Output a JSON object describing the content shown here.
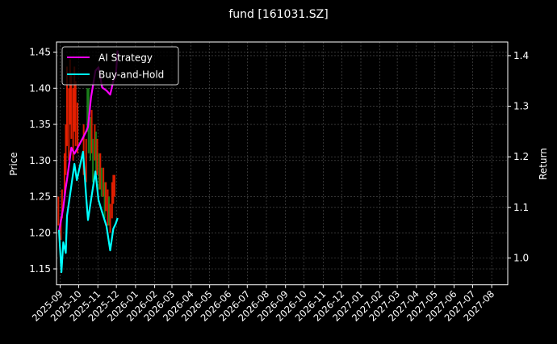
{
  "chart_data": {
    "type": "line",
    "title": "fund [161031.SZ]",
    "ylabel_left": "Price",
    "ylabel_right": "Return",
    "xlim": [
      "2025-08-26",
      "2027-08-27"
    ],
    "ylim_left": [
      1.128,
      1.464
    ],
    "ylim_right": [
      0.947,
      1.427
    ],
    "grid": true,
    "legend_placement": "top-left",
    "x_tick_labels": [
      "2025-09",
      "2025-10",
      "2025-11",
      "2025-12",
      "2026-01",
      "2026-02",
      "2026-03",
      "2026-04",
      "2026-05",
      "2026-06",
      "2026-07",
      "2026-08",
      "2026-09",
      "2026-10",
      "2026-11",
      "2026-12",
      "2027-01",
      "2027-02",
      "2027-03",
      "2027-04",
      "2027-05",
      "2027-06",
      "2027-07",
      "2027-08"
    ],
    "y_left_tick_labels": [
      "1.15",
      "1.20",
      "1.25",
      "1.30",
      "1.35",
      "1.40",
      "1.45"
    ],
    "y_right_tick_labels": [
      "1.0",
      "1.1",
      "1.2",
      "1.3",
      "1.4"
    ],
    "colors": {
      "background": "#000000",
      "up": "#ff2200",
      "down": "#1f8f1f",
      "ai_strategy": "#ff00ff",
      "buy_and_hold": "#00ffff",
      "grid": "#555555"
    },
    "price_candles": [
      {
        "date": "2025-08-29",
        "open": 1.21,
        "close": 1.25
      },
      {
        "date": "2025-09-02",
        "open": 1.19,
        "close": 1.22
      },
      {
        "date": "2025-09-04",
        "open": 1.22,
        "close": 1.26
      },
      {
        "date": "2025-09-08",
        "open": 1.25,
        "close": 1.31
      },
      {
        "date": "2025-09-10",
        "open": 1.28,
        "close": 1.35
      },
      {
        "date": "2025-09-12",
        "open": 1.32,
        "close": 1.43
      },
      {
        "date": "2025-09-15",
        "open": 1.3,
        "close": 1.4
      },
      {
        "date": "2025-09-17",
        "open": 1.35,
        "close": 1.44
      },
      {
        "date": "2025-09-19",
        "open": 1.33,
        "close": 1.42
      },
      {
        "date": "2025-09-22",
        "open": 1.3,
        "close": 1.4
      },
      {
        "date": "2025-09-24",
        "open": 1.34,
        "close": 1.43
      },
      {
        "date": "2025-09-26",
        "open": 1.32,
        "close": 1.41
      },
      {
        "date": "2025-09-29",
        "open": 1.31,
        "close": 1.38
      },
      {
        "date": "2025-10-09",
        "open": 1.28,
        "close": 1.35
      },
      {
        "date": "2025-10-13",
        "open": 1.27,
        "close": 1.33
      },
      {
        "date": "2025-10-15",
        "open": 1.4,
        "close": 1.34
      },
      {
        "date": "2025-10-17",
        "open": 1.4,
        "close": 1.31
      },
      {
        "date": "2025-10-20",
        "open": 1.36,
        "close": 1.3
      },
      {
        "date": "2025-10-22",
        "open": 1.31,
        "close": 1.37
      },
      {
        "date": "2025-10-24",
        "open": 1.33,
        "close": 1.27
      },
      {
        "date": "2025-10-27",
        "open": 1.3,
        "close": 1.35
      },
      {
        "date": "2025-10-29",
        "open": 1.34,
        "close": 1.28
      },
      {
        "date": "2025-10-31",
        "open": 1.28,
        "close": 1.33
      },
      {
        "date": "2025-11-03",
        "open": 1.31,
        "close": 1.26
      },
      {
        "date": "2025-11-05",
        "open": 1.26,
        "close": 1.31
      },
      {
        "date": "2025-11-07",
        "open": 1.29,
        "close": 1.25
      },
      {
        "date": "2025-11-10",
        "open": 1.25,
        "close": 1.29
      },
      {
        "date": "2025-11-12",
        "open": 1.27,
        "close": 1.22
      },
      {
        "date": "2025-11-14",
        "open": 1.23,
        "close": 1.27
      },
      {
        "date": "2025-11-17",
        "open": 1.21,
        "close": 1.26
      },
      {
        "date": "2025-11-19",
        "open": 1.25,
        "close": 1.21
      },
      {
        "date": "2025-11-21",
        "open": 1.2,
        "close": 1.24
      },
      {
        "date": "2025-11-24",
        "open": 1.22,
        "close": 1.27
      },
      {
        "date": "2025-11-26",
        "open": 1.24,
        "close": 1.28
      },
      {
        "date": "2025-11-28",
        "open": 1.25,
        "close": 1.28
      }
    ],
    "x": [
      "2025-08-30",
      "2025-09-03",
      "2025-09-06",
      "2025-09-10",
      "2025-09-12",
      "2025-09-19",
      "2025-09-24",
      "2025-09-28",
      "2025-10-08",
      "2025-10-13",
      "2025-10-16",
      "2025-10-21",
      "2025-10-28",
      "2025-11-02",
      "2025-11-08",
      "2025-11-15",
      "2025-11-21",
      "2025-11-26",
      "2025-11-30",
      "2025-12-03"
    ],
    "series": [
      {
        "name": "AI Strategy",
        "axis": "right",
        "values": [
          1.052,
          1.079,
          1.1,
          1.14,
          1.155,
          1.218,
          1.206,
          1.215,
          1.238,
          1.25,
          1.259,
          1.318,
          1.37,
          1.377,
          1.337,
          1.331,
          1.323,
          1.35,
          1.36,
          1.41
        ]
      },
      {
        "name": "Buy-and-Hold",
        "axis": "right",
        "values": [
          1.055,
          0.972,
          1.031,
          1.01,
          1.083,
          1.143,
          1.186,
          1.154,
          1.21,
          1.122,
          1.075,
          1.115,
          1.171,
          1.115,
          1.09,
          1.063,
          1.015,
          1.058,
          1.068,
          1.079
        ]
      }
    ]
  }
}
